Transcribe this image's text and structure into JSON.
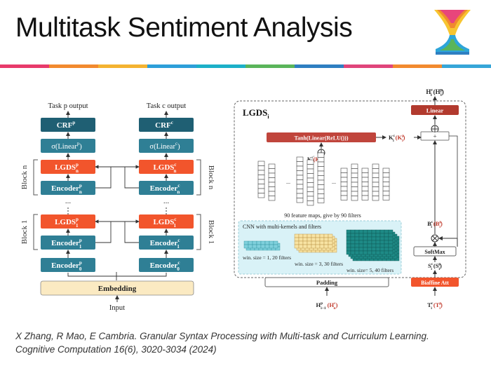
{
  "slide": {
    "title": "Multitask Sentiment Analysis",
    "stripe_colors": [
      "#e83a6b",
      "#f28a2e",
      "#f4b331",
      "#2d9fd9",
      "#1db0c8",
      "#5ab55a",
      "#2f7fc1",
      "#e0457b",
      "#f28a2e",
      "#36a6d8"
    ]
  },
  "left": {
    "input": "Input",
    "embedding": "Embedding",
    "task_p_output": "Task p output",
    "task_c_output": "Task c output",
    "block_n": "Block n",
    "block_1": "Block 1",
    "ellipsis": "...",
    "p_col": {
      "crf": "CRF",
      "crf_sup": "p",
      "linear": "σ(Linear",
      "linear_sup": "p",
      "linear_close": ")",
      "lgds_n": "LGDS",
      "lgds_n_sup": "p",
      "lgds_n_sub": "n",
      "encoder_n": "Encoder",
      "encoder_n_sup": "p",
      "encoder_n_sub": "n",
      "lgds_1": "LGDS",
      "lgds_1_sup": "p",
      "lgds_1_sub": "1",
      "encoder_1": "Encoder",
      "encoder_1_sup": "p",
      "encoder_1_sub": "1",
      "encoder_0": "Encoder",
      "encoder_0_sup": "p",
      "encoder_0_sub": "0"
    },
    "c_col": {
      "crf": "CRF",
      "crf_sup": "c",
      "linear": "σ(Linear",
      "linear_sup": "c",
      "linear_close": ")",
      "lgds_n": "LGDS",
      "lgds_n_sup": "c",
      "lgds_n_sub": "n",
      "encoder_n": "Encoder",
      "encoder_n_sup": "c",
      "encoder_n_sub": "n",
      "lgds_1": "LGDS",
      "lgds_1_sup": "c",
      "lgds_1_sub": "1",
      "encoder_1": "Encoder",
      "encoder_1_sup": "c",
      "encoder_1_sub": "1",
      "encoder_0": "Encoder",
      "encoder_0_sup": "c",
      "encoder_0_sub": "0"
    }
  },
  "right": {
    "lgds_title": "LGDS",
    "lgds_sub": "i",
    "h_out": "H",
    "h_out_sup": "c",
    "h_out_sub": "i",
    "h_out_paren": "(H",
    "h_out_paren_sup": "p",
    "h_out_paren_sub": "i",
    "linear": "Linear",
    "tanh": "Tanh(Linear(ReLU()))",
    "k_label": "K",
    "k_sup": "c",
    "k_sub": "i",
    "k_paren": "(K",
    "k_paren_sup": "p",
    "k_paren_sub": "i",
    "kprime_label": "K",
    "kprime_sup": "c'",
    "kprime_sub": "i",
    "kprime_paren": "(K",
    "kprime_paren_sup": "p'",
    "kprime_paren_sub": "i",
    "plus": "+",
    "feature_maps": "90 feature maps, give by 90 filters",
    "cnn_title": "CNN with multi-kernels and filters",
    "win1": "win. size = 1, 20 filters",
    "win3": "win. size = 3, 30 filters",
    "win5": "win. size= 5, 40 filters",
    "padding": "Padding",
    "softmax": "SoftMax",
    "biaffine": "Biaffine Att",
    "b_label": "B",
    "b_sup": "c",
    "b_sub": "i",
    "b_paren": "(B",
    "b_paren_sup": "p",
    "b_paren_sub": "i",
    "s_label": "S",
    "s_sup": "c",
    "s_sub": "i",
    "s_paren": "(S",
    "s_paren_sup": "p",
    "s_paren_sub": "i",
    "h_in": "H",
    "h_in_sup": "p",
    "h_in_sub": "i−1",
    "h_in_paren": "(H",
    "h_in_paren_sup": "c",
    "h_in_paren_sub": "n",
    "t_label": "T",
    "t_sup": "c",
    "t_sub": "i",
    "t_paren": "(T",
    "t_paren_sup": "p",
    "t_paren_sub": "i",
    "ellipsis": "..."
  },
  "citation": {
    "line1": "X Zhang, R Mao, E Cambria. Granular Syntax Processing with Multi-task and Curriculum Learning.",
    "line2": "Cognitive Computation 16(6), 3020-3034 (2024)"
  },
  "colors": {
    "teal_dark": "#1f5f73",
    "teal": "#2f7f95",
    "orange": "#f2552c",
    "embedding_fill": "#fbeac2",
    "linear_red": "#b23a2e",
    "tanh_red": "#c0453c",
    "cyan_panel": "#d9f2f7",
    "cube_cyan": "#7fd0dc",
    "cube_yellow": "#f7e3a3",
    "cube_teal": "#1e8a86"
  }
}
